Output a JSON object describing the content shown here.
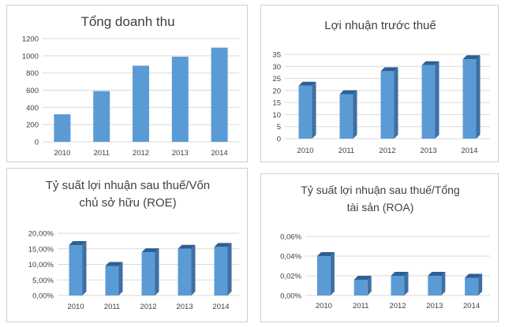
{
  "colors": {
    "bar_front": "#5b9bd5",
    "bar_side": "#3f6fa3",
    "bar_top": "#2e5f94",
    "gridline": "#d9d9d9",
    "text": "#404040"
  },
  "chart_data": [
    {
      "type": "bar",
      "title": "Tổng doanh thu",
      "categories": [
        "2010",
        "2011",
        "2012",
        "2013",
        "2014"
      ],
      "values": [
        320,
        590,
        885,
        990,
        1095
      ],
      "ylim": [
        0,
        1200
      ],
      "yticks": [
        "0",
        "200",
        "400",
        "600",
        "800",
        "1000",
        "1200"
      ],
      "grid": true,
      "style": "2d"
    },
    {
      "type": "bar",
      "title": "Lợi nhuận trước thuế",
      "categories": [
        "2010",
        "2011",
        "2012",
        "2013",
        "2014"
      ],
      "values": [
        22,
        18.5,
        28,
        30.5,
        33
      ],
      "ylim": [
        0,
        35
      ],
      "yticks": [
        "0",
        "5",
        "10",
        "15",
        "20",
        "25",
        "30",
        "35"
      ],
      "grid": true,
      "style": "3d"
    },
    {
      "type": "bar",
      "title": "Tỷ suất lợi nhuận sau thuế/Vốn chủ sở hữu (ROE)",
      "title_lines": [
        "Tỷ suất lợi nhuận sau thuế/Vốn",
        "chủ sở hữu (ROE)"
      ],
      "categories": [
        "2010",
        "2011",
        "2012",
        "2013",
        "2014"
      ],
      "values": [
        16.2,
        9.5,
        13.9,
        15.0,
        15.6
      ],
      "ylim": [
        0,
        20
      ],
      "yticks": [
        "0,00%",
        "5,00%",
        "10,00%",
        "15,00%",
        "20,00%"
      ],
      "grid": true,
      "style": "3d"
    },
    {
      "type": "bar",
      "title": "Tỷ suất lợi nhuận sau thuế/Tổng tài sản (ROA)",
      "title_lines": [
        "Tỷ suất lợi nhuận sau thuế/Tổng",
        "tài sản (ROA)"
      ],
      "categories": [
        "2010",
        "2011",
        "2012",
        "2013",
        "2014"
      ],
      "values": [
        0.04,
        0.016,
        0.02,
        0.02,
        0.018
      ],
      "ylim": [
        0,
        0.06
      ],
      "yticks": [
        "0,00%",
        "0,02%",
        "0,04%",
        "0,06%"
      ],
      "grid": true,
      "style": "3d"
    }
  ]
}
